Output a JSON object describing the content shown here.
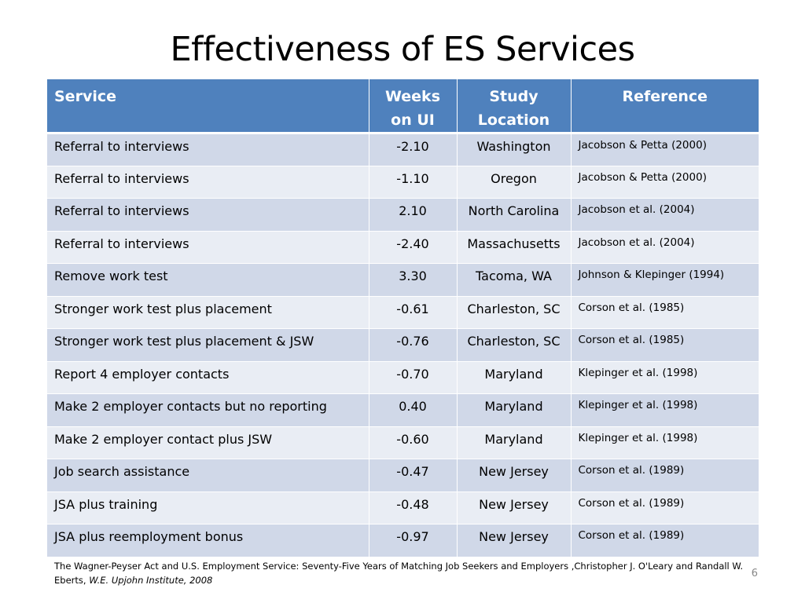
{
  "slide": {
    "title": "Effectiveness of ES Services",
    "page_number": "6"
  },
  "table": {
    "headers": {
      "service": "Service",
      "weeks_line1": "Weeks",
      "weeks_line2": "on UI",
      "location_line1": "Study",
      "location_line2": "Location",
      "reference": "Reference"
    },
    "rows": [
      {
        "service": "Referral to interviews",
        "weeks": "-2.10",
        "location": "Washington",
        "reference": "Jacobson & Petta (2000)"
      },
      {
        "service": "Referral to interviews",
        "weeks": "-1.10",
        "location": "Oregon",
        "reference": "Jacobson & Petta (2000)"
      },
      {
        "service": "Referral to interviews",
        "weeks": "2.10",
        "location": "North Carolina",
        "reference": "Jacobson et al. (2004)"
      },
      {
        "service": "Referral to interviews",
        "weeks": "-2.40",
        "location": "Massachusetts",
        "reference": "Jacobson et al. (2004)"
      },
      {
        "service": "Remove work test",
        "weeks": "3.30",
        "location": "Tacoma, WA",
        "reference": "Johnson & Klepinger (1994)"
      },
      {
        "service": "Stronger work test plus placement",
        "weeks": "-0.61",
        "location": "Charleston, SC",
        "reference": "Corson et al. (1985)"
      },
      {
        "service": "Stronger work test plus placement & JSW",
        "weeks": "-0.76",
        "location": "Charleston, SC",
        "reference": "Corson et al. (1985)"
      },
      {
        "service": "Report 4 employer contacts",
        "weeks": "-0.70",
        "location": "Maryland",
        "reference": "Klepinger et al. (1998)"
      },
      {
        "service": "Make 2 employer contacts but no reporting",
        "weeks": "0.40",
        "location": "Maryland",
        "reference": "Klepinger et al. (1998)"
      },
      {
        "service": "Make 2 employer contact plus JSW",
        "weeks": "-0.60",
        "location": "Maryland",
        "reference": "Klepinger et al. (1998)"
      },
      {
        "service": "Job search assistance",
        "weeks": "-0.47",
        "location": "New Jersey",
        "reference": "Corson et al. (1989)"
      },
      {
        "service": "JSA plus training",
        "weeks": "-0.48",
        "location": "New Jersey",
        "reference": "Corson et al. (1989)"
      },
      {
        "service": "JSA plus reemployment bonus",
        "weeks": "-0.97",
        "location": "New Jersey",
        "reference": "Corson et al. (1989)"
      }
    ]
  },
  "footnote": {
    "text": "The Wagner-Peyser Act and U.S. Employment Service: Seventy-Five Years of Matching Job Seekers and Employers ,Christopher J. O'Leary and Randall W. Eberts, ",
    "source": "W.E. Upjohn Institute, 2008"
  },
  "colors": {
    "header_bg": "#4f81bd",
    "row_odd_bg": "#d0d8e8",
    "row_even_bg": "#e9edf4"
  }
}
